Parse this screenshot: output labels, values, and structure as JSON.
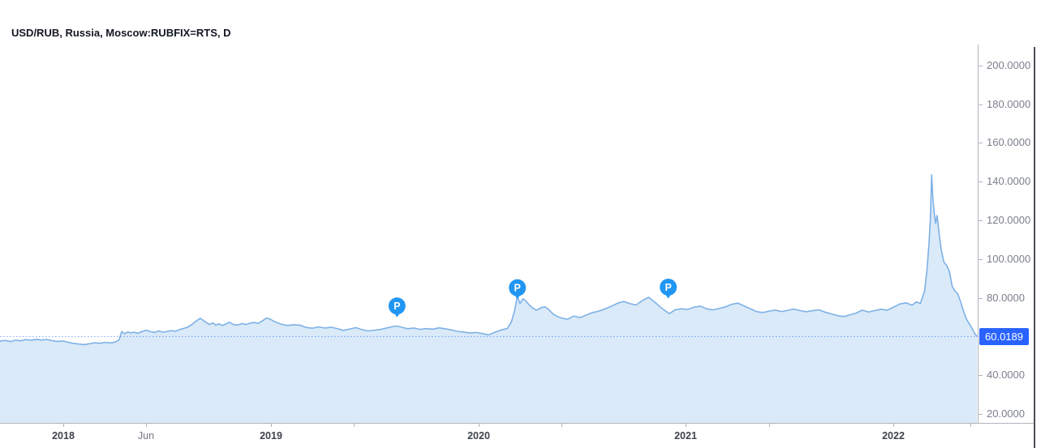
{
  "chart_data": {
    "type": "area",
    "title": "USD/RUB, Russia, Moscow:RUBFIX=RTS, D",
    "symbol": "USD/RUB",
    "exchange": "Russia, Moscow:RUBFIX=RTS",
    "interval": "D",
    "x_unit": "decimal_year",
    "xlim": [
      2017.695,
      2022.406
    ],
    "ylim": [
      15.4,
      210.8
    ],
    "grid": false,
    "legend": "none",
    "last_price": 60.0189,
    "last_price_label": "60.0189",
    "y_axis_ticks": [
      {
        "value": 200,
        "label": "200.0000"
      },
      {
        "value": 180,
        "label": "180.0000"
      },
      {
        "value": 160,
        "label": "160.0000"
      },
      {
        "value": 140,
        "label": "140.0000"
      },
      {
        "value": 120,
        "label": "120.0000"
      },
      {
        "value": 100,
        "label": "100.0000"
      },
      {
        "value": 80,
        "label": "80.0000"
      },
      {
        "value": 40,
        "label": "40.0000"
      },
      {
        "value": 20,
        "label": "20.0000"
      }
    ],
    "x_axis_ticks": [
      {
        "label": "2018",
        "t": 2018.0,
        "kind": "year"
      },
      {
        "label": "Jun",
        "t": 2018.4,
        "kind": "month"
      },
      {
        "label": "2019",
        "t": 2019.0,
        "kind": "year"
      },
      {
        "label": "",
        "t": 2019.4,
        "kind": "minor"
      },
      {
        "label": "2020",
        "t": 2020.0,
        "kind": "year"
      },
      {
        "label": "",
        "t": 2020.4,
        "kind": "minor"
      },
      {
        "label": "2021",
        "t": 2021.0,
        "kind": "year"
      },
      {
        "label": "",
        "t": 2021.4,
        "kind": "minor"
      },
      {
        "label": "2022",
        "t": 2022.0,
        "kind": "year"
      },
      {
        "label": "",
        "t": 2022.37,
        "kind": "minor"
      }
    ],
    "markers": [
      {
        "label": "P",
        "t": 2019.608,
        "price": 75.8
      },
      {
        "label": "P",
        "t": 2020.188,
        "price": 85.2
      },
      {
        "label": "P",
        "t": 2020.915,
        "price": 85.5
      }
    ],
    "series": [
      {
        "name": "USD/RUB",
        "points": [
          [
            2017.695,
            57.6
          ],
          [
            2017.72,
            58.0
          ],
          [
            2017.745,
            57.4
          ],
          [
            2017.77,
            58.1
          ],
          [
            2017.795,
            57.8
          ],
          [
            2017.82,
            58.4
          ],
          [
            2017.845,
            58.1
          ],
          [
            2017.87,
            58.6
          ],
          [
            2017.895,
            58.2
          ],
          [
            2017.92,
            58.5
          ],
          [
            2017.945,
            57.9
          ],
          [
            2017.97,
            57.5
          ],
          [
            2018.0,
            57.7
          ],
          [
            2018.025,
            57.0
          ],
          [
            2018.05,
            56.5
          ],
          [
            2018.075,
            56.1
          ],
          [
            2018.1,
            55.8
          ],
          [
            2018.125,
            56.3
          ],
          [
            2018.15,
            56.8
          ],
          [
            2018.175,
            56.5
          ],
          [
            2018.2,
            57.0
          ],
          [
            2018.225,
            56.7
          ],
          [
            2018.25,
            57.1
          ],
          [
            2018.268,
            58.3
          ],
          [
            2018.282,
            62.6
          ],
          [
            2018.295,
            61.4
          ],
          [
            2018.31,
            62.4
          ],
          [
            2018.325,
            61.9
          ],
          [
            2018.34,
            62.2
          ],
          [
            2018.36,
            61.7
          ],
          [
            2018.38,
            62.6
          ],
          [
            2018.4,
            63.3
          ],
          [
            2018.42,
            62.5
          ],
          [
            2018.44,
            62.1
          ],
          [
            2018.46,
            62.9
          ],
          [
            2018.48,
            62.2
          ],
          [
            2018.5,
            62.6
          ],
          [
            2018.52,
            63.1
          ],
          [
            2018.54,
            62.7
          ],
          [
            2018.56,
            63.6
          ],
          [
            2018.58,
            64.2
          ],
          [
            2018.6,
            64.9
          ],
          [
            2018.62,
            66.3
          ],
          [
            2018.64,
            68.0
          ],
          [
            2018.66,
            69.4
          ],
          [
            2018.675,
            68.3
          ],
          [
            2018.69,
            67.2
          ],
          [
            2018.705,
            66.2
          ],
          [
            2018.72,
            67.1
          ],
          [
            2018.735,
            65.8
          ],
          [
            2018.75,
            66.6
          ],
          [
            2018.765,
            65.7
          ],
          [
            2018.78,
            66.3
          ],
          [
            2018.8,
            67.4
          ],
          [
            2018.82,
            66.2
          ],
          [
            2018.84,
            65.9
          ],
          [
            2018.86,
            66.7
          ],
          [
            2018.88,
            66.2
          ],
          [
            2018.9,
            66.9
          ],
          [
            2018.92,
            67.3
          ],
          [
            2018.94,
            66.8
          ],
          [
            2018.96,
            68.2
          ],
          [
            2018.98,
            69.6
          ],
          [
            2019.0,
            68.8
          ],
          [
            2019.02,
            67.6
          ],
          [
            2019.05,
            66.4
          ],
          [
            2019.08,
            65.7
          ],
          [
            2019.11,
            66.1
          ],
          [
            2019.14,
            65.9
          ],
          [
            2019.17,
            64.7
          ],
          [
            2019.2,
            64.3
          ],
          [
            2019.23,
            65.0
          ],
          [
            2019.26,
            64.4
          ],
          [
            2019.29,
            64.8
          ],
          [
            2019.32,
            64.1
          ],
          [
            2019.35,
            63.2
          ],
          [
            2019.38,
            63.9
          ],
          [
            2019.41,
            64.6
          ],
          [
            2019.44,
            63.5
          ],
          [
            2019.47,
            62.9
          ],
          [
            2019.5,
            63.3
          ],
          [
            2019.53,
            63.7
          ],
          [
            2019.56,
            64.5
          ],
          [
            2019.59,
            65.2
          ],
          [
            2019.61,
            65.4
          ],
          [
            2019.63,
            64.8
          ],
          [
            2019.66,
            64.0
          ],
          [
            2019.69,
            64.4
          ],
          [
            2019.72,
            63.7
          ],
          [
            2019.75,
            64.1
          ],
          [
            2019.78,
            63.8
          ],
          [
            2019.81,
            64.5
          ],
          [
            2019.84,
            64.0
          ],
          [
            2019.87,
            63.4
          ],
          [
            2019.9,
            62.7
          ],
          [
            2019.93,
            62.3
          ],
          [
            2019.96,
            61.9
          ],
          [
            2019.99,
            62.1
          ],
          [
            2020.02,
            61.5
          ],
          [
            2020.05,
            60.9
          ],
          [
            2020.08,
            62.2
          ],
          [
            2020.11,
            63.4
          ],
          [
            2020.14,
            64.2
          ],
          [
            2020.16,
            67.8
          ],
          [
            2020.175,
            73.5
          ],
          [
            2020.188,
            80.9
          ],
          [
            2020.2,
            77.0
          ],
          [
            2020.215,
            79.5
          ],
          [
            2020.23,
            78.2
          ],
          [
            2020.245,
            76.3
          ],
          [
            2020.26,
            74.9
          ],
          [
            2020.28,
            73.6
          ],
          [
            2020.3,
            74.8
          ],
          [
            2020.32,
            75.4
          ],
          [
            2020.34,
            73.9
          ],
          [
            2020.36,
            71.6
          ],
          [
            2020.38,
            70.4
          ],
          [
            2020.4,
            69.6
          ],
          [
            2020.43,
            68.9
          ],
          [
            2020.46,
            70.6
          ],
          [
            2020.49,
            69.8
          ],
          [
            2020.52,
            71.1
          ],
          [
            2020.55,
            72.4
          ],
          [
            2020.58,
            73.1
          ],
          [
            2020.61,
            74.3
          ],
          [
            2020.64,
            75.6
          ],
          [
            2020.67,
            77.2
          ],
          [
            2020.7,
            78.1
          ],
          [
            2020.73,
            77.0
          ],
          [
            2020.76,
            76.3
          ],
          [
            2020.79,
            78.6
          ],
          [
            2020.82,
            80.3
          ],
          [
            2020.85,
            77.8
          ],
          [
            2020.88,
            74.9
          ],
          [
            2020.92,
            71.8
          ],
          [
            2020.95,
            73.9
          ],
          [
            2020.98,
            74.3
          ],
          [
            2021.01,
            74.0
          ],
          [
            2021.04,
            75.2
          ],
          [
            2021.07,
            75.7
          ],
          [
            2021.1,
            74.3
          ],
          [
            2021.13,
            73.8
          ],
          [
            2021.16,
            74.5
          ],
          [
            2021.19,
            75.3
          ],
          [
            2021.22,
            76.6
          ],
          [
            2021.25,
            77.3
          ],
          [
            2021.28,
            75.8
          ],
          [
            2021.31,
            74.4
          ],
          [
            2021.34,
            72.9
          ],
          [
            2021.37,
            72.4
          ],
          [
            2021.4,
            73.1
          ],
          [
            2021.43,
            73.7
          ],
          [
            2021.46,
            72.9
          ],
          [
            2021.49,
            73.5
          ],
          [
            2021.52,
            74.2
          ],
          [
            2021.55,
            73.4
          ],
          [
            2021.58,
            72.8
          ],
          [
            2021.61,
            73.3
          ],
          [
            2021.64,
            73.8
          ],
          [
            2021.67,
            72.6
          ],
          [
            2021.7,
            71.7
          ],
          [
            2021.73,
            70.8
          ],
          [
            2021.76,
            70.3
          ],
          [
            2021.79,
            71.2
          ],
          [
            2021.82,
            72.1
          ],
          [
            2021.85,
            73.6
          ],
          [
            2021.88,
            72.7
          ],
          [
            2021.91,
            73.4
          ],
          [
            2021.94,
            74.1
          ],
          [
            2021.97,
            73.6
          ],
          [
            2022.0,
            75.2
          ],
          [
            2022.03,
            76.8
          ],
          [
            2022.06,
            77.4
          ],
          [
            2022.09,
            76.2
          ],
          [
            2022.11,
            77.9
          ],
          [
            2022.13,
            77.1
          ],
          [
            2022.15,
            83.5
          ],
          [
            2022.162,
            95.0
          ],
          [
            2022.172,
            109.0
          ],
          [
            2022.178,
            121.0
          ],
          [
            2022.184,
            143.5
          ],
          [
            2022.19,
            131.0
          ],
          [
            2022.196,
            124.0
          ],
          [
            2022.203,
            118.5
          ],
          [
            2022.21,
            122.5
          ],
          [
            2022.22,
            113.5
          ],
          [
            2022.23,
            105.0
          ],
          [
            2022.243,
            98.5
          ],
          [
            2022.256,
            96.8
          ],
          [
            2022.27,
            93.5
          ],
          [
            2022.283,
            86.0
          ],
          [
            2022.296,
            83.5
          ],
          [
            2022.31,
            82.0
          ],
          [
            2022.324,
            77.8
          ],
          [
            2022.338,
            73.0
          ],
          [
            2022.352,
            69.0
          ],
          [
            2022.366,
            66.5
          ],
          [
            2022.38,
            64.0
          ],
          [
            2022.392,
            61.5
          ],
          [
            2022.403,
            60.02
          ]
        ]
      }
    ],
    "colors": {
      "line": "#7eb1e6",
      "fill": "#daeaf8",
      "dotted_line": "#2962ff",
      "price_label_bg": "#2962ff",
      "price_label_text": "#ffffff",
      "marker_bg": "#2196f3",
      "marker_text": "#ffffff",
      "axis_text": "#7b7f8c",
      "year_text": "#3f434c",
      "axis_line": "#b2b5be"
    }
  }
}
